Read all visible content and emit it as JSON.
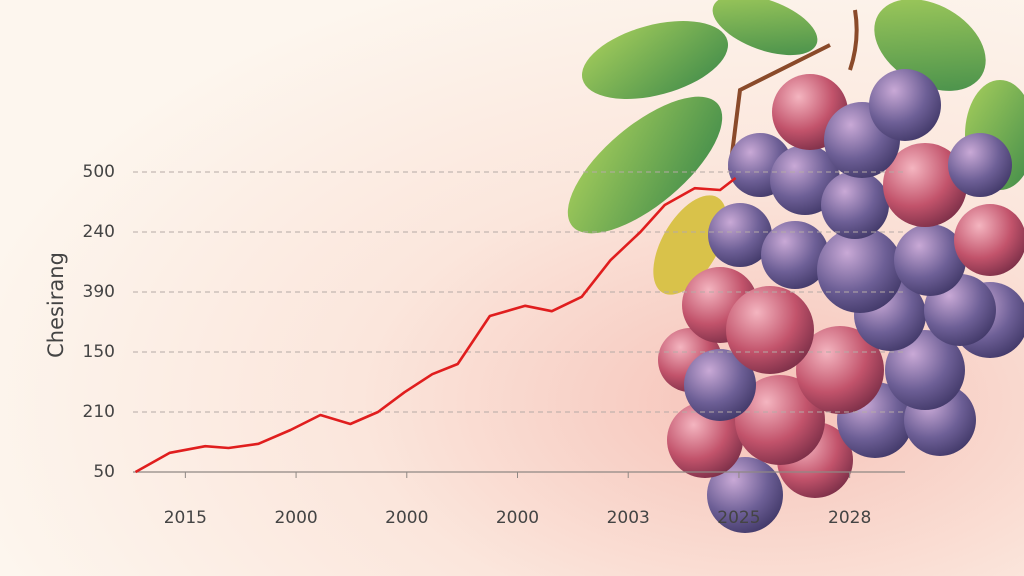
{
  "chart_data": {
    "type": "line",
    "y_label": "Chesirang",
    "x": [
      0.55,
      0.86,
      1.18,
      1.39,
      1.66,
      1.95,
      2.22,
      2.49,
      2.74,
      2.98,
      3.23,
      3.46,
      3.75,
      4.07,
      4.31,
      4.58,
      4.84,
      5.11,
      5.33,
      5.6,
      5.83,
      5.97
    ],
    "series": [
      {
        "color": "#e01e1e",
        "values": [
          0,
          0.32,
          0.43,
          0.4,
          0.47,
          0.7,
          0.95,
          0.8,
          1.0,
          1.33,
          1.63,
          1.8,
          2.6,
          2.77,
          2.68,
          2.92,
          3.53,
          4.0,
          4.45,
          4.73,
          4.7,
          4.9
        ]
      }
    ],
    "xlim": [
      0.5,
      7.5
    ],
    "xticks": [
      {
        "value": 1,
        "label": "2015"
      },
      {
        "value": 2,
        "label": "2000"
      },
      {
        "value": 3,
        "label": "2000"
      },
      {
        "value": 4,
        "label": "2000"
      },
      {
        "value": 5,
        "label": "2003"
      },
      {
        "value": 6,
        "label": "2025"
      },
      {
        "value": 7,
        "label": "2028"
      }
    ],
    "ylim": [
      0,
      5
    ],
    "yticks": [
      {
        "value": 0,
        "label": "50"
      },
      {
        "value": 1,
        "label": "210"
      },
      {
        "value": 2,
        "label": "150"
      },
      {
        "value": 3,
        "label": "390"
      },
      {
        "value": 4,
        "label": "240"
      },
      {
        "value": 5,
        "label": "500"
      }
    ],
    "grid": true
  }
}
